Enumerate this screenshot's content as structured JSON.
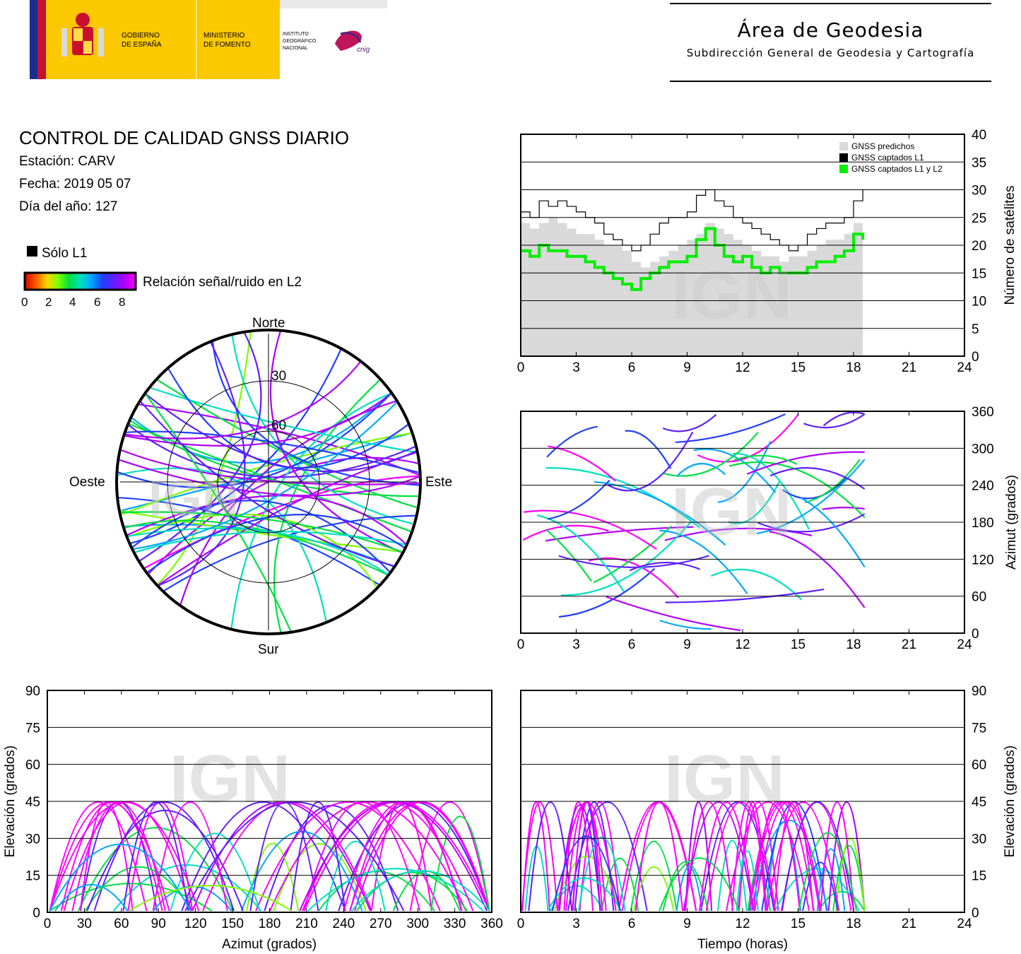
{
  "header": {
    "gov_line1": "GOBIERNO",
    "gov_line2": "DE ESPAÑA",
    "min_line1": "MINISTERIO",
    "min_line2": "DE FOMENTO",
    "inst_line1": "INSTITUTO",
    "inst_line2": "GEOGRÁFICO",
    "inst_line3": "NACIONAL",
    "cnig_mark": "cnig",
    "area_title": "Área de Geodesia",
    "area_subtitle": "Subdirección General de Geodesia y Cartografía"
  },
  "info": {
    "title": "CONTROL DE CALIDAD GNSS DIARIO",
    "station": "Estación: CARV",
    "date": "Fecha: 2019 05 07",
    "doy": "Día del año: 127"
  },
  "legend": {
    "l1_only": "Sólo L1",
    "snr_label": "Relación señal/ruido en L2",
    "snr_ticks": [
      "0",
      "2",
      "4",
      "6",
      "8"
    ]
  },
  "colors": {
    "predicted": "#d9d9d9",
    "l1": "#000000",
    "l1l2": "#00ee00",
    "snr_scale": [
      "#d40000",
      "#ff5a00",
      "#ffd400",
      "#7cff00",
      "#00e040",
      "#00e0c0",
      "#00a8ff",
      "#2040ff",
      "#6020ff",
      "#b000ff",
      "#ff00ff"
    ]
  },
  "watermark": "IGN",
  "chart_data": [
    {
      "id": "satellites",
      "type": "line",
      "x": [
        0,
        0.5,
        1,
        1.5,
        2,
        2.5,
        3,
        3.5,
        4,
        4.5,
        5,
        5.5,
        6,
        6.5,
        7,
        7.5,
        8,
        8.5,
        9,
        9.5,
        10,
        10.5,
        11,
        11.5,
        12,
        12.5,
        13,
        13.5,
        14,
        14.5,
        15,
        15.5,
        16,
        16.5,
        17,
        17.5,
        18,
        18.5
      ],
      "series": [
        {
          "name": "GNSS predichos",
          "values": [
            24,
            23,
            24,
            25,
            24,
            23,
            22,
            22,
            21,
            20,
            20,
            19,
            17,
            16,
            17,
            18,
            19,
            20,
            21,
            22,
            24,
            23,
            22,
            21,
            20,
            19,
            18,
            18,
            17,
            18,
            18,
            19,
            20,
            21,
            21,
            22,
            24,
            25
          ]
        },
        {
          "name": "GNSS captados L1",
          "values": [
            26,
            25,
            28,
            27,
            28,
            27,
            26,
            25,
            24,
            22,
            21,
            20,
            19,
            20,
            22,
            24,
            25,
            25,
            26,
            29,
            30,
            28,
            27,
            25,
            24,
            23,
            22,
            21,
            20,
            19,
            20,
            22,
            23,
            24,
            24,
            25,
            28,
            30
          ]
        },
        {
          "name": "GNSS captados L1 y L2",
          "values": [
            19,
            18,
            20,
            19,
            19,
            18,
            18,
            17,
            16,
            15,
            14,
            13,
            12,
            14,
            15,
            16,
            17,
            17,
            18,
            21,
            23,
            20,
            18,
            17,
            18,
            16,
            15,
            16,
            15,
            15,
            15,
            16,
            17,
            17,
            18,
            19,
            22,
            21
          ]
        }
      ],
      "ylabel": "Número de satélites",
      "xlim": [
        0,
        24
      ],
      "ylim": [
        0,
        40
      ],
      "xticks": [
        "0",
        "3",
        "6",
        "9",
        "12",
        "15",
        "18",
        "21",
        "24"
      ],
      "yticks": [
        "0",
        "5",
        "10",
        "15",
        "20",
        "25",
        "30",
        "35",
        "40"
      ],
      "legend_position": "top-right",
      "grid": true
    },
    {
      "id": "azimuth_time",
      "type": "scatter",
      "ylabel": "Azimut (grados)",
      "xlim": [
        0,
        24
      ],
      "ylim": [
        0,
        360
      ],
      "xticks": [
        "0",
        "3",
        "6",
        "9",
        "12",
        "15",
        "18",
        "21",
        "24"
      ],
      "yticks": [
        "0",
        "60",
        "120",
        "180",
        "240",
        "300",
        "360"
      ],
      "grid": true
    },
    {
      "id": "skyplot",
      "type": "scatter",
      "directions": {
        "north": "Norte",
        "south": "Sur",
        "west": "Oeste",
        "east": "Este"
      },
      "ring_labels": [
        "30",
        "60"
      ]
    },
    {
      "id": "elevation_azimuth",
      "type": "scatter",
      "xlabel": "Azimut (grados)",
      "ylabel": "Elevación (grados)",
      "xlim": [
        0,
        360
      ],
      "ylim": [
        0,
        90
      ],
      "xticks": [
        "0",
        "30",
        "60",
        "90",
        "120",
        "150",
        "180",
        "210",
        "240",
        "270",
        "300",
        "330",
        "360"
      ],
      "yticks": [
        "0",
        "15",
        "30",
        "45",
        "60",
        "75",
        "90"
      ],
      "grid": true
    },
    {
      "id": "elevation_time",
      "type": "scatter",
      "xlabel": "Tiempo (horas)",
      "ylabel": "Elevación (grados)",
      "xlim": [
        0,
        24
      ],
      "ylim": [
        0,
        90
      ],
      "xticks": [
        "0",
        "3",
        "6",
        "9",
        "12",
        "15",
        "18",
        "21",
        "24"
      ],
      "yticks": [
        "0",
        "15",
        "30",
        "45",
        "60",
        "75",
        "90"
      ],
      "grid": true
    }
  ]
}
